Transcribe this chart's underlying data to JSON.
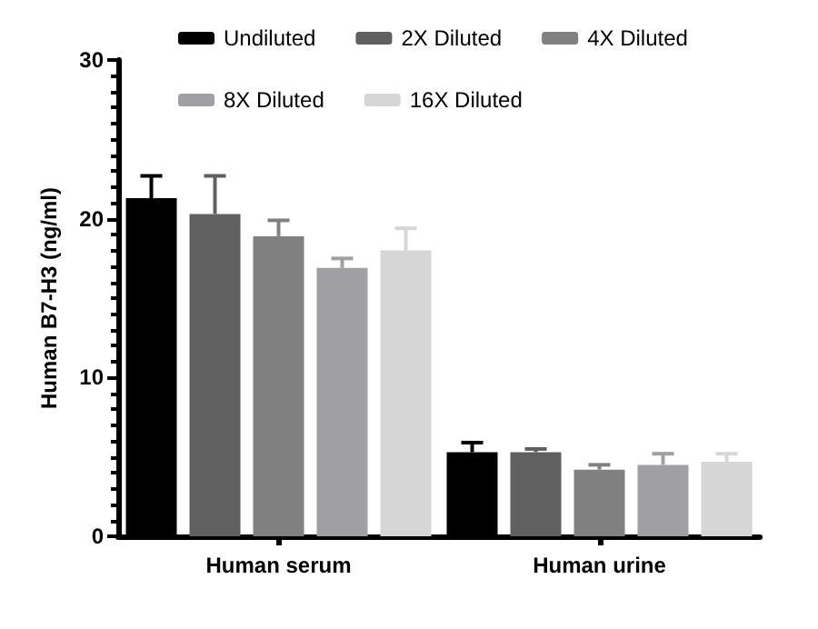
{
  "chart_data": {
    "type": "bar",
    "ylabel": "Human B7-H3 (ng/ml)",
    "categories": [
      "Human serum",
      "Human urine"
    ],
    "series": [
      {
        "name": "Undiluted",
        "color": "#000000",
        "values": [
          21.3,
          5.3
        ],
        "errors": [
          [
            21.3,
            22.7
          ],
          [
            5.3,
            5.9
          ]
        ]
      },
      {
        "name": "2X Diluted",
        "color": "#606060",
        "values": [
          20.3,
          5.3
        ],
        "errors": [
          [
            20.3,
            22.7
          ],
          [
            5.3,
            5.5
          ]
        ]
      },
      {
        "name": "4X Diluted",
        "color": "#808080",
        "values": [
          18.9,
          4.2
        ],
        "errors": [
          [
            18.9,
            19.9
          ],
          [
            4.2,
            4.5
          ]
        ]
      },
      {
        "name": "8X Diluted",
        "color": "#a0a0a4",
        "values": [
          16.9,
          4.5
        ],
        "errors": [
          [
            16.9,
            17.5
          ],
          [
            4.5,
            5.2
          ]
        ]
      },
      {
        "name": "16X Diluted",
        "color": "#d6d6d6",
        "values": [
          18.0,
          4.7
        ],
        "errors": [
          [
            18.0,
            19.4
          ],
          [
            4.7,
            5.2
          ]
        ]
      }
    ],
    "ylim": [
      0,
      30
    ],
    "yticks": [
      0,
      10,
      20,
      30
    ],
    "grid": false,
    "legend": "top"
  }
}
